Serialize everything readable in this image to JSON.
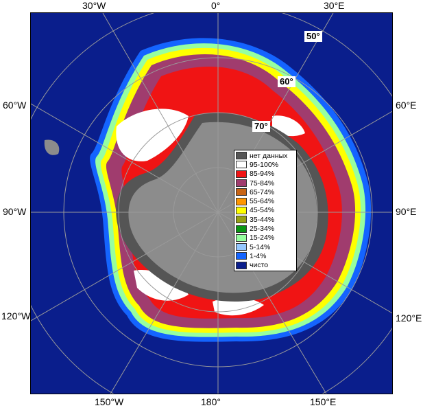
{
  "map": {
    "ocean_color": "#0a1e8c",
    "land_color": "#8c8c8c",
    "ice_shelf_color": "#555555",
    "longitude_labels": {
      "top": [
        "30°W",
        "0°",
        "30°E"
      ],
      "left": [
        "60°W",
        "90°W",
        "120°W"
      ],
      "right": [
        "60°E",
        "90°E",
        "120°E"
      ],
      "bottom": [
        "150°W",
        "180°",
        "150°E"
      ]
    },
    "latitude_labels": [
      "50°",
      "60°",
      "70°"
    ]
  },
  "legend": {
    "items": [
      {
        "label": "нет данных",
        "color": "#555555"
      },
      {
        "label": "95-100%",
        "color": "#ffffff"
      },
      {
        "label": "85-94%",
        "color": "#f01414"
      },
      {
        "label": "75-84%",
        "color": "#a03c6e"
      },
      {
        "label": "65-74%",
        "color": "#c86414"
      },
      {
        "label": "55-64%",
        "color": "#ff9600"
      },
      {
        "label": "45-54%",
        "color": "#ffff00"
      },
      {
        "label": "35-44%",
        "color": "#96a014"
      },
      {
        "label": "25-34%",
        "color": "#0a9614"
      },
      {
        "label": "15-24%",
        "color": "#96ffa0"
      },
      {
        "label": "5-14%",
        "color": "#96c8ff"
      },
      {
        "label": "1-4%",
        "color": "#1464ff"
      },
      {
        "label": "чисто",
        "color": "#0a1e8c"
      }
    ]
  }
}
